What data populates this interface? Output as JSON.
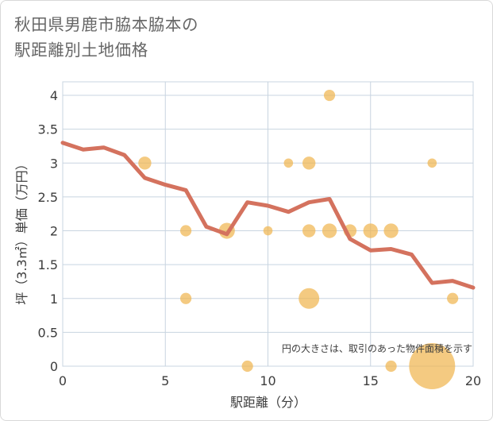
{
  "page": {
    "title_line1": "秋田県男鹿市脇本脇本の",
    "title_line2": "駅距離別土地価格"
  },
  "chart_data": {
    "type": "scatter+line",
    "xlabel": "駅距離（分）",
    "ylabel": "坪（3.3㎡）単価（万円）",
    "xlim": [
      0,
      20
    ],
    "ylim": [
      0,
      4.2
    ],
    "xticks": [
      "0",
      "5",
      "10",
      "15",
      "20"
    ],
    "yticks": [
      "0",
      "0.5",
      "1",
      "1.5",
      "2",
      "2.5",
      "3",
      "3.5",
      "4"
    ],
    "grid": true,
    "annotation": "円の大きさは、取引のあった物件面積を示す",
    "colors": {
      "line": "#d4725e",
      "bubble": "#f0b550",
      "grid": "#c8d4e0"
    },
    "points": [
      {
        "x": 4,
        "y": 3.0,
        "size": 2
      },
      {
        "x": 6,
        "y": 2.0,
        "size": 1.5
      },
      {
        "x": 6,
        "y": 1.0,
        "size": 1.5
      },
      {
        "x": 8,
        "y": 2.0,
        "size": 3
      },
      {
        "x": 9,
        "y": 0.0,
        "size": 1.5
      },
      {
        "x": 10,
        "y": 2.0,
        "size": 1
      },
      {
        "x": 11,
        "y": 3.0,
        "size": 1
      },
      {
        "x": 12,
        "y": 3.0,
        "size": 2
      },
      {
        "x": 12,
        "y": 2.0,
        "size": 2
      },
      {
        "x": 12,
        "y": 1.0,
        "size": 5
      },
      {
        "x": 13,
        "y": 4.0,
        "size": 1.5
      },
      {
        "x": 13,
        "y": 2.0,
        "size": 2.5
      },
      {
        "x": 14,
        "y": 2.0,
        "size": 2
      },
      {
        "x": 15,
        "y": 2.0,
        "size": 2.5
      },
      {
        "x": 16,
        "y": 2.0,
        "size": 2.5
      },
      {
        "x": 16,
        "y": 0.0,
        "size": 1.5
      },
      {
        "x": 18,
        "y": 3.0,
        "size": 1
      },
      {
        "x": 18,
        "y": 0.0,
        "size": 25
      },
      {
        "x": 19,
        "y": 1.0,
        "size": 1.5
      }
    ],
    "line": {
      "x": [
        0,
        1,
        2,
        3,
        4,
        5,
        6,
        7,
        8,
        9,
        10,
        11,
        12,
        13,
        14,
        15,
        16,
        17,
        18,
        19,
        20
      ],
      "y": [
        3.3,
        3.2,
        3.23,
        3.12,
        2.78,
        2.68,
        2.6,
        2.06,
        1.95,
        2.42,
        2.37,
        2.28,
        2.42,
        2.47,
        1.88,
        1.71,
        1.73,
        1.65,
        1.23,
        1.26,
        1.16
      ]
    }
  }
}
